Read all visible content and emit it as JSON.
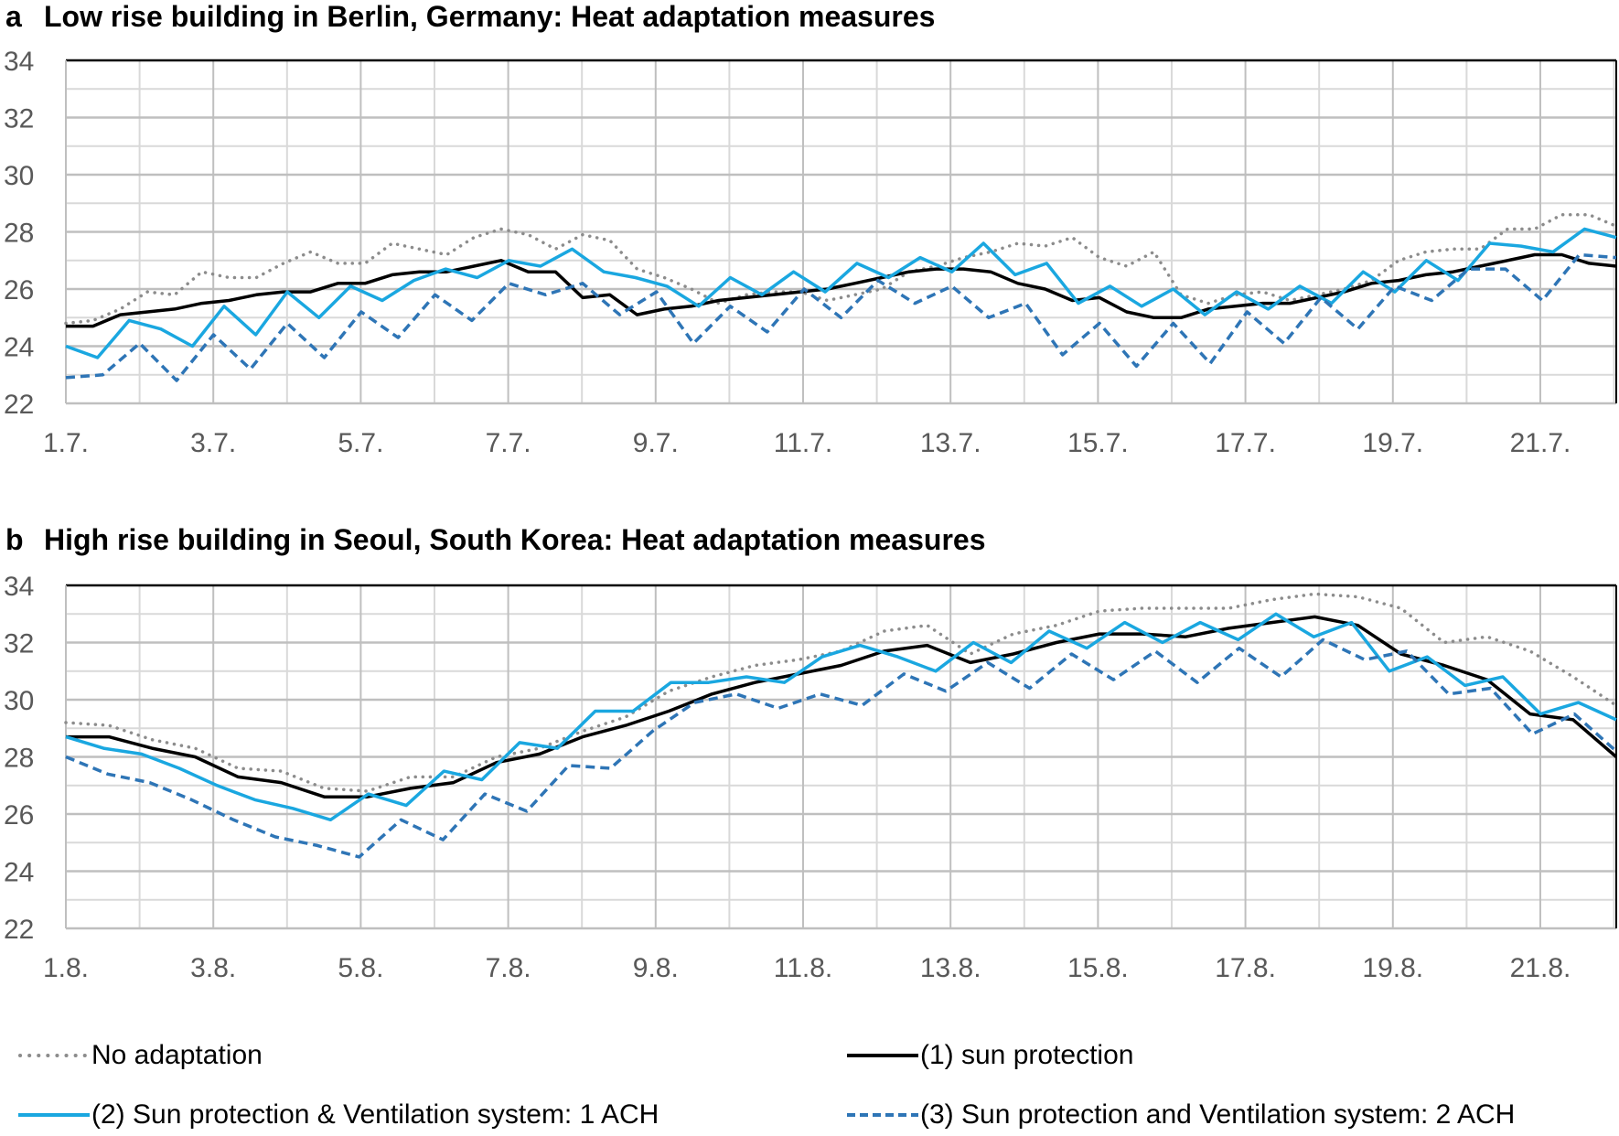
{
  "chart_data": [
    {
      "id": "a",
      "type": "line",
      "panel_letter": "a",
      "title": "Low rise building in Berlin, Germany: Heat adaptation measures",
      "xlabel": "",
      "ylabel": "",
      "ylim": [
        22,
        34
      ],
      "yticks": [
        22,
        24,
        26,
        28,
        30,
        32,
        34
      ],
      "xlim_days": [
        0,
        21.03
      ],
      "xtick_labels": [
        "1.7.",
        "3.7.",
        "5.7.",
        "7.7.",
        "9.7.",
        "11.7.",
        "13.7.",
        "15.7.",
        "17.7.",
        "19.7.",
        "21.7."
      ],
      "grid": true,
      "x_step_days": 0.5,
      "series": [
        {
          "name": "No adaptation",
          "values": [
            24.8,
            24.9,
            25.3,
            25.9,
            25.8,
            26.6,
            26.4,
            26.4,
            26.9,
            27.3,
            26.9,
            26.9,
            27.6,
            27.4,
            27.2,
            27.8,
            28.1,
            27.9,
            27.4,
            27.9,
            27.7,
            26.7,
            26.4,
            26.0,
            25.5,
            25.8,
            25.9,
            25.9,
            25.6,
            25.8,
            26.0,
            26.6,
            26.8,
            27.1,
            27.3,
            27.6,
            27.5,
            27.8,
            27.1,
            26.8,
            27.3,
            25.8,
            25.5,
            25.8,
            25.9,
            25.6,
            25.8,
            26.0,
            26.3,
            27.0,
            27.3,
            27.4,
            27.4,
            28.1,
            28.1,
            28.6,
            28.6,
            28.2
          ]
        },
        {
          "name": "(1) sun protection",
          "values": [
            24.7,
            24.7,
            25.1,
            25.2,
            25.3,
            25.5,
            25.6,
            25.8,
            25.9,
            25.9,
            26.2,
            26.2,
            26.5,
            26.6,
            26.6,
            26.8,
            27.0,
            26.6,
            26.6,
            25.7,
            25.8,
            25.1,
            25.3,
            25.4,
            25.6,
            25.7,
            25.8,
            25.9,
            26.0,
            26.2,
            26.4,
            26.6,
            26.7,
            26.7,
            26.6,
            26.2,
            26.0,
            25.6,
            25.7,
            25.2,
            25.0,
            25.0,
            25.3,
            25.4,
            25.5,
            25.5,
            25.7,
            25.9,
            26.2,
            26.3,
            26.5,
            26.6,
            26.8,
            27.0,
            27.2,
            27.2,
            26.9,
            26.8
          ]
        },
        {
          "name": "(2) Sun protection & Ventilation system: 1 ACH",
          "values": [
            24.0,
            23.6,
            24.9,
            24.6,
            24.0,
            25.4,
            24.4,
            25.9,
            25.0,
            26.1,
            25.6,
            26.3,
            26.7,
            26.4,
            27.0,
            26.8,
            27.4,
            26.6,
            26.4,
            26.1,
            25.4,
            26.4,
            25.8,
            26.6,
            25.9,
            26.9,
            26.4,
            27.1,
            26.6,
            27.6,
            26.5,
            26.9,
            25.5,
            26.1,
            25.4,
            26.0,
            25.1,
            25.9,
            25.3,
            26.1,
            25.5,
            26.6,
            25.9,
            27.0,
            26.3,
            27.6,
            27.5,
            27.3,
            28.1,
            27.8
          ]
        },
        {
          "name": "(3) Sun protection and Ventilation system: 2 ACH",
          "values": [
            22.9,
            23.0,
            24.1,
            22.8,
            24.4,
            23.2,
            24.8,
            23.6,
            25.2,
            24.3,
            25.8,
            24.9,
            26.2,
            25.8,
            26.2,
            25.1,
            25.9,
            24.1,
            25.4,
            24.5,
            26.0,
            25.0,
            26.3,
            25.5,
            26.1,
            25.0,
            25.5,
            23.7,
            24.8,
            23.3,
            24.8,
            23.4,
            25.2,
            24.1,
            25.7,
            24.6,
            26.1,
            25.6,
            26.7,
            26.7,
            25.6,
            27.2,
            27.1
          ]
        }
      ]
    },
    {
      "id": "b",
      "type": "line",
      "panel_letter": "b",
      "title": "High rise building in Seoul, South Korea: Heat adaptation measures",
      "xlabel": "",
      "ylabel": "",
      "ylim": [
        22,
        34
      ],
      "yticks": [
        22,
        24,
        26,
        28,
        30,
        32,
        34
      ],
      "xlim_days": [
        0,
        21.03
      ],
      "xtick_labels": [
        "1.8.",
        "3.8.",
        "5.8.",
        "7.8.",
        "9.8.",
        "11.8.",
        "13.8.",
        "15.8.",
        "17.8.",
        "19.8.",
        "21.8."
      ],
      "grid": true,
      "x_step_days": 0.5,
      "series": [
        {
          "name": "No adaptation",
          "values": [
            29.2,
            29.1,
            28.6,
            28.3,
            27.6,
            27.5,
            26.9,
            26.8,
            27.3,
            27.3,
            28.0,
            28.3,
            28.9,
            29.4,
            30.3,
            30.8,
            31.2,
            31.4,
            31.7,
            32.4,
            32.6,
            31.6,
            32.3,
            32.6,
            33.1,
            33.2,
            33.2,
            33.2,
            33.5,
            33.7,
            33.6,
            33.2,
            32.0,
            32.2,
            31.7,
            30.8,
            29.8
          ]
        },
        {
          "name": "(1) sun protection",
          "values": [
            28.7,
            28.7,
            28.3,
            28.0,
            27.3,
            27.1,
            26.6,
            26.6,
            26.9,
            27.1,
            27.8,
            28.1,
            28.7,
            29.1,
            29.6,
            30.2,
            30.6,
            30.9,
            31.2,
            31.7,
            31.9,
            31.3,
            31.6,
            32.0,
            32.3,
            32.3,
            32.2,
            32.5,
            32.7,
            32.9,
            32.6,
            31.6,
            31.2,
            30.7,
            29.5,
            29.3,
            28.0
          ]
        },
        {
          "name": "(2) Sun protection & Ventilation system: 1 ACH",
          "values": [
            28.7,
            28.3,
            28.1,
            27.6,
            27.0,
            26.5,
            26.2,
            25.8,
            26.7,
            26.3,
            27.5,
            27.2,
            28.5,
            28.3,
            29.6,
            29.6,
            30.6,
            30.6,
            30.8,
            30.6,
            31.5,
            31.9,
            31.5,
            31.0,
            32.0,
            31.3,
            32.4,
            31.8,
            32.7,
            32.0,
            32.7,
            32.1,
            33.0,
            32.2,
            32.7,
            31.0,
            31.5,
            30.5,
            30.8,
            29.5,
            29.9,
            29.3
          ]
        },
        {
          "name": "(3) Sun protection and Ventilation system: 2 ACH",
          "values": [
            28.0,
            27.4,
            27.1,
            26.5,
            25.8,
            25.2,
            24.9,
            24.5,
            25.8,
            25.1,
            26.7,
            26.1,
            27.7,
            27.6,
            28.9,
            29.9,
            30.2,
            29.7,
            30.2,
            29.8,
            30.9,
            30.3,
            31.3,
            30.4,
            31.6,
            30.7,
            31.7,
            30.6,
            31.8,
            30.8,
            32.1,
            31.4,
            31.7,
            30.2,
            30.4,
            28.8,
            29.5,
            28.2
          ]
        }
      ]
    }
  ],
  "legend": {
    "items": [
      {
        "label": "No adaptation",
        "style": "dotted",
        "color": "#8c8c8c"
      },
      {
        "label": "(1) sun protection",
        "style": "solid",
        "color": "#000000"
      },
      {
        "label": "(2) Sun protection & Ventilation system: 1 ACH",
        "style": "solid",
        "color": "#1aa7e0"
      },
      {
        "label": "(3) Sun protection and Ventilation system: 2 ACH",
        "style": "dashed",
        "color": "#2e75b6"
      }
    ]
  },
  "colors": {
    "no_adaptation": "#8c8c8c",
    "sun_protection": "#000000",
    "ventilation_1ach": "#1aa7e0",
    "ventilation_2ach": "#2e75b6",
    "grid_major": "#bfbfbf",
    "grid_minor": "#d9d9d9",
    "tick_text": "#595959"
  }
}
